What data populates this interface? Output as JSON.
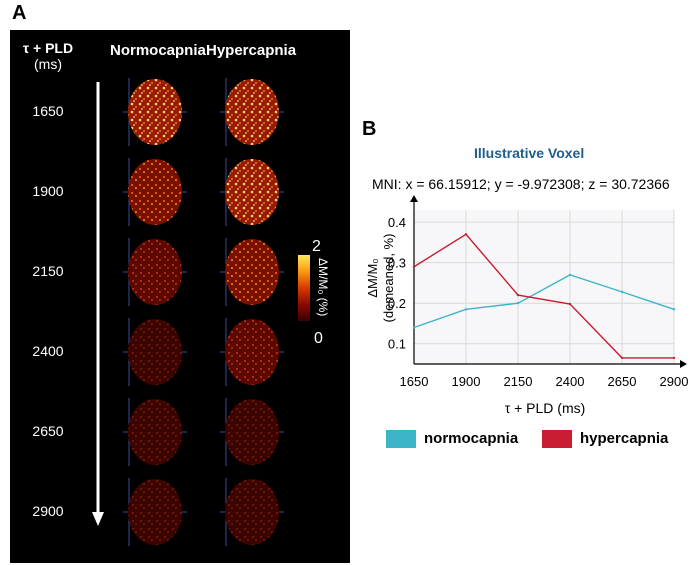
{
  "panel_a": {
    "letter": "A",
    "axis_header_line1": "τ + PLD",
    "axis_header_line2": "(ms)",
    "col_normocapnia": "Normocapnia",
    "col_hypercapnia": "Hypercapnia",
    "time_labels": [
      "1650",
      "1900",
      "2150",
      "2400",
      "2650",
      "2900"
    ],
    "colorbar": {
      "max_label": "2",
      "min_label": "0",
      "title": "ΔM/M₀ (%)",
      "colors": [
        "#3a0000",
        "#8b0a00",
        "#d33a00",
        "#f99a10",
        "#ffe85a"
      ]
    }
  },
  "panel_b": {
    "letter": "B",
    "title": "Illustrative Voxel",
    "mni": "MNI: x = 66.15912; y = -9.972308; z = 30.72366",
    "legend": [
      {
        "label": "normocapnia",
        "color": "#3cb5c9"
      },
      {
        "label": "hypercapnia",
        "color": "#c81d33"
      }
    ]
  },
  "chart_data": {
    "type": "line",
    "x": [
      1650,
      1900,
      2150,
      2400,
      2650,
      2900
    ],
    "series": [
      {
        "name": "normocapnia",
        "values": [
          0.14,
          0.185,
          0.2,
          0.27,
          0.228,
          0.185
        ],
        "color": "#3cb5c9"
      },
      {
        "name": "hypercapnia",
        "values": [
          0.29,
          0.37,
          0.22,
          0.198,
          0.065,
          0.065
        ],
        "color": "#c81d33"
      }
    ],
    "xlabel": "τ + PLD (ms)",
    "ylabel_line1": "ΔM/M₀",
    "ylabel_line2": "(demeaned, %)",
    "xlim": [
      1650,
      2900
    ],
    "ylim": [
      0.05,
      0.43
    ],
    "xticks": [
      1650,
      1900,
      2150,
      2400,
      2650,
      2900
    ],
    "yticks": [
      0.1,
      0.2,
      0.3,
      0.4
    ],
    "grid": true
  }
}
